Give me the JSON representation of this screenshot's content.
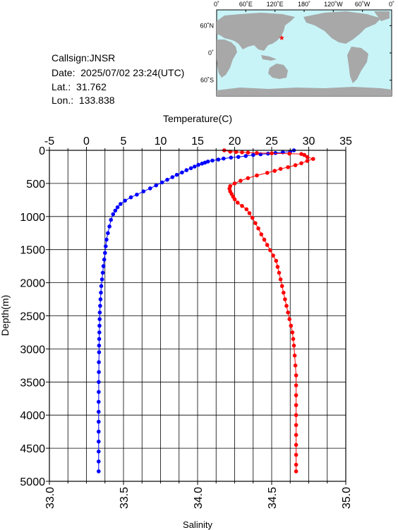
{
  "station": {
    "callsign_label": "Callsign:",
    "callsign": "JNSR",
    "date_label": "Date:",
    "date": "2025/07/02 23:24(UTC)",
    "lat_label": "Lat.:",
    "lat": "31.762",
    "lon_label": "Lon.:",
    "lon": "133.838"
  },
  "map": {
    "lon_ticks": [
      "0˚",
      "60˚E",
      "120˚E",
      "180˚",
      "120˚W",
      "60˚W",
      "0˚"
    ],
    "lat_ticks": [
      "60˚N",
      "0˚",
      "60˚S"
    ],
    "ocean_color": "#c8f4f8",
    "land_color": "#a8a8a8",
    "marker_color": "#ff0000",
    "marker_icon": "star-icon",
    "marker_lat": 31.762,
    "marker_lon": 133.838
  },
  "chart_data": {
    "type": "line",
    "ylabel": "Depth(m)",
    "ylim": [
      0,
      5000
    ],
    "y_reversed": true,
    "y_ticks": [
      "0",
      "500",
      "1000",
      "1500",
      "2000",
      "2500",
      "3000",
      "3500",
      "4000",
      "4500",
      "5000"
    ],
    "top_axis": {
      "label": "Temperature(C)",
      "range": [
        -5,
        35
      ],
      "ticks": [
        "-5",
        "0",
        "5",
        "10",
        "15",
        "20",
        "25",
        "30",
        "35"
      ]
    },
    "bottom_axis": {
      "label": "Salinity",
      "range": [
        33.0,
        35.0
      ],
      "ticks": [
        "33.0",
        "33.5",
        "34.0",
        "34.5",
        "35.0"
      ]
    },
    "grid": true,
    "series": [
      {
        "axis": "temperature",
        "color": "#0000ff",
        "points": [
          [
            28.0,
            0
          ],
          [
            27.5,
            20
          ],
          [
            26.5,
            30
          ],
          [
            25.5,
            40
          ],
          [
            24.5,
            50
          ],
          [
            23.5,
            60
          ],
          [
            22.5,
            70
          ],
          [
            21.5,
            85
          ],
          [
            20.5,
            100
          ],
          [
            19.5,
            110
          ],
          [
            18.5,
            125
          ],
          [
            17.8,
            140
          ],
          [
            17.0,
            155
          ],
          [
            16.4,
            170
          ],
          [
            16.0,
            185
          ],
          [
            15.6,
            200
          ],
          [
            15.1,
            220
          ],
          [
            14.6,
            245
          ],
          [
            14.1,
            270
          ],
          [
            13.5,
            300
          ],
          [
            12.9,
            335
          ],
          [
            12.2,
            370
          ],
          [
            11.6,
            405
          ],
          [
            10.9,
            445
          ],
          [
            10.2,
            485
          ],
          [
            9.4,
            530
          ],
          [
            8.6,
            575
          ],
          [
            7.7,
            620
          ],
          [
            6.8,
            670
          ],
          [
            6.0,
            710
          ],
          [
            5.2,
            760
          ],
          [
            4.6,
            810
          ],
          [
            4.2,
            860
          ],
          [
            3.9,
            910
          ],
          [
            3.6,
            965
          ],
          [
            3.3,
            1050
          ],
          [
            3.1,
            1150
          ],
          [
            2.9,
            1250
          ],
          [
            2.7,
            1350
          ],
          [
            2.6,
            1450
          ],
          [
            2.5,
            1550
          ],
          [
            2.4,
            1650
          ],
          [
            2.3,
            1750
          ],
          [
            2.2,
            1850
          ],
          [
            2.1,
            1950
          ],
          [
            2.0,
            2050
          ],
          [
            1.95,
            2150
          ],
          [
            1.9,
            2250
          ],
          [
            1.85,
            2350
          ],
          [
            1.8,
            2450
          ],
          [
            1.78,
            2550
          ],
          [
            1.76,
            2650
          ],
          [
            1.74,
            2750
          ],
          [
            1.72,
            2850
          ],
          [
            1.7,
            2950
          ],
          [
            1.7,
            3050
          ],
          [
            1.68,
            3200
          ],
          [
            1.68,
            3350
          ],
          [
            1.66,
            3500
          ],
          [
            1.66,
            3650
          ],
          [
            1.65,
            3800
          ],
          [
            1.65,
            3950
          ],
          [
            1.65,
            4100
          ],
          [
            1.65,
            4250
          ],
          [
            1.65,
            4400
          ],
          [
            1.65,
            4550
          ],
          [
            1.65,
            4700
          ],
          [
            1.65,
            4850
          ]
        ]
      },
      {
        "axis": "salinity",
        "color": "#ff0000",
        "points": [
          [
            34.18,
            0
          ],
          [
            34.22,
            20
          ],
          [
            34.26,
            25
          ],
          [
            34.3,
            30
          ],
          [
            34.34,
            35
          ],
          [
            34.4,
            40
          ],
          [
            34.5,
            45
          ],
          [
            34.62,
            50
          ],
          [
            34.7,
            55
          ],
          [
            34.72,
            70
          ],
          [
            34.74,
            100
          ],
          [
            34.78,
            130
          ],
          [
            34.74,
            160
          ],
          [
            34.7,
            195
          ],
          [
            34.66,
            225
          ],
          [
            34.61,
            255
          ],
          [
            34.56,
            280
          ],
          [
            34.52,
            310
          ],
          [
            34.47,
            340
          ],
          [
            34.4,
            380
          ],
          [
            34.34,
            420
          ],
          [
            34.29,
            460
          ],
          [
            34.25,
            500
          ],
          [
            34.22,
            540
          ],
          [
            34.215,
            580
          ],
          [
            34.22,
            620
          ],
          [
            34.23,
            660
          ],
          [
            34.24,
            700
          ],
          [
            34.25,
            740
          ],
          [
            34.27,
            790
          ],
          [
            34.3,
            840
          ],
          [
            34.33,
            890
          ],
          [
            34.35,
            950
          ],
          [
            34.37,
            1020
          ],
          [
            34.39,
            1100
          ],
          [
            34.41,
            1180
          ],
          [
            34.43,
            1270
          ],
          [
            34.45,
            1350
          ],
          [
            34.47,
            1430
          ],
          [
            34.49,
            1510
          ],
          [
            34.51,
            1590
          ],
          [
            34.53,
            1670
          ],
          [
            34.54,
            1760
          ],
          [
            34.55,
            1850
          ],
          [
            34.56,
            1950
          ],
          [
            34.57,
            2050
          ],
          [
            34.58,
            2150
          ],
          [
            34.59,
            2250
          ],
          [
            34.6,
            2350
          ],
          [
            34.61,
            2450
          ],
          [
            34.62,
            2550
          ],
          [
            34.63,
            2650
          ],
          [
            34.64,
            2750
          ],
          [
            34.645,
            2850
          ],
          [
            34.65,
            2950
          ],
          [
            34.655,
            3100
          ],
          [
            34.66,
            3250
          ],
          [
            34.665,
            3400
          ],
          [
            34.665,
            3550
          ],
          [
            34.665,
            3700
          ],
          [
            34.665,
            3850
          ],
          [
            34.665,
            4000
          ],
          [
            34.665,
            4150
          ],
          [
            34.665,
            4300
          ],
          [
            34.665,
            4450
          ],
          [
            34.665,
            4600
          ],
          [
            34.665,
            4750
          ],
          [
            34.665,
            4850
          ]
        ]
      }
    ]
  }
}
